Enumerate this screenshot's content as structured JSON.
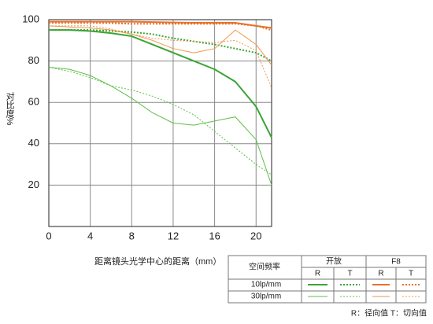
{
  "chart_data": {
    "type": "line",
    "ylabel": "对比度%",
    "xlabel": "距离镜头光学中心的距离（mm）",
    "x": [
      0,
      2,
      4,
      6,
      8,
      10,
      12,
      14,
      16,
      18,
      20,
      21.5
    ],
    "xlim": [
      0,
      21.5
    ],
    "xticks": [
      0,
      4,
      8,
      12,
      16,
      20
    ],
    "ylim": [
      0,
      100
    ],
    "yticks": [
      20,
      40,
      60,
      80,
      100
    ],
    "grid": true,
    "series": [
      {
        "color": "#3aa535",
        "width": 2,
        "dashed": false,
        "values": [
          95,
          95,
          94.5,
          93.5,
          92,
          88,
          84,
          80,
          76,
          70,
          58,
          43
        ]
      },
      {
        "color": "#3aa535",
        "width": 2,
        "dashed": true,
        "values": [
          95,
          95,
          95,
          94.5,
          94,
          93,
          91,
          89.5,
          88,
          86,
          84,
          80
        ]
      },
      {
        "color": "#e8702a",
        "width": 2,
        "dashed": false,
        "values": [
          99,
          99,
          99,
          99,
          99,
          98.8,
          98.6,
          98.5,
          98.5,
          98.5,
          97,
          96
        ]
      },
      {
        "color": "#e8702a",
        "width": 2,
        "dashed": true,
        "values": [
          98.5,
          98.5,
          98.5,
          98.3,
          98,
          98,
          98,
          98,
          98,
          98,
          97,
          95
        ]
      },
      {
        "color": "#5cbf45",
        "width": 1,
        "dashed": false,
        "values": [
          77,
          76,
          73,
          68,
          62,
          55,
          50,
          49,
          51,
          53,
          42,
          20
        ]
      },
      {
        "color": "#5cbf45",
        "width": 1,
        "dashed": true,
        "values": [
          77,
          75,
          72,
          68,
          66,
          63,
          59,
          54,
          46,
          38,
          30,
          25
        ]
      },
      {
        "color": "#f0954a",
        "width": 1,
        "dashed": false,
        "values": [
          97,
          96.5,
          96,
          95,
          93,
          90,
          86,
          84,
          86,
          95,
          88,
          78
        ]
      },
      {
        "color": "#f0954a",
        "width": 1,
        "dashed": true,
        "values": [
          97,
          97,
          97,
          95.5,
          93,
          91,
          90,
          89.5,
          89,
          90,
          85,
          67
        ]
      }
    ],
    "legend": {
      "header": "空间频率",
      "groups": [
        "开放",
        "F8"
      ],
      "components": [
        "R",
        "T",
        "R",
        "T"
      ],
      "rows": [
        "10lp/mm",
        "30lp/mm"
      ]
    },
    "note": "R：径向值   T：切向值"
  }
}
